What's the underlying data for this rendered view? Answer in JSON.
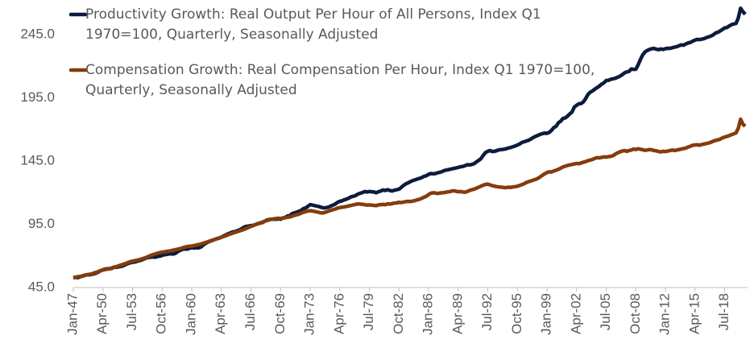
{
  "chart_data": {
    "type": "line",
    "categories": [
      "Jan-47",
      null,
      null,
      null,
      null,
      null,
      null,
      null,
      null,
      null,
      null,
      null,
      null,
      "Apr-50",
      null,
      null,
      null,
      null,
      null,
      null,
      null,
      null,
      null,
      null,
      null,
      null,
      "Jul-53",
      null,
      null,
      null,
      null,
      null,
      null,
      null,
      null,
      null,
      null,
      null,
      null,
      "Oct-56",
      null,
      null,
      null,
      null,
      null,
      null,
      null,
      null,
      null,
      null,
      null,
      null,
      "Jan-60",
      null,
      null,
      null,
      null,
      null,
      null,
      null,
      null,
      null,
      null,
      null,
      null,
      "Apr-63",
      null,
      null,
      null,
      null,
      null,
      null,
      null,
      null,
      null,
      null,
      null,
      null,
      "Jul-66",
      null,
      null,
      null,
      null,
      null,
      null,
      null,
      null,
      null,
      null,
      null,
      null,
      "Oct-69",
      null,
      null,
      null,
      null,
      null,
      null,
      null,
      null,
      null,
      null,
      null,
      null,
      "Jan-73",
      null,
      null,
      null,
      null,
      null,
      null,
      null,
      null,
      null,
      null,
      null,
      null,
      "Apr-76",
      null,
      null,
      null,
      null,
      null,
      null,
      null,
      null,
      null,
      null,
      null,
      null,
      "Jul-79",
      null,
      null,
      null,
      null,
      null,
      null,
      null,
      null,
      null,
      null,
      null,
      null,
      "Oct-82",
      null,
      null,
      null,
      null,
      null,
      null,
      null,
      null,
      null,
      null,
      null,
      null,
      "Jan-86",
      null,
      null,
      null,
      null,
      null,
      null,
      null,
      null,
      null,
      null,
      null,
      null,
      "Apr-89",
      null,
      null,
      null,
      null,
      null,
      null,
      null,
      null,
      null,
      null,
      null,
      null,
      "Jul-92",
      null,
      null,
      null,
      null,
      null,
      null,
      null,
      null,
      null,
      null,
      null,
      null,
      "Oct-95",
      null,
      null,
      null,
      null,
      null,
      null,
      null,
      null,
      null,
      null,
      null,
      null,
      "Jan-99",
      null,
      null,
      null,
      null,
      null,
      null,
      null,
      null,
      null,
      null,
      null,
      null,
      "Apr-02",
      null,
      null,
      null,
      null,
      null,
      null,
      null,
      null,
      null,
      null,
      null,
      null,
      "Jul-05",
      null,
      null,
      null,
      null,
      null,
      null,
      null,
      null,
      null,
      null,
      null,
      null,
      "Oct-08",
      null,
      null,
      null,
      null,
      null,
      null,
      null,
      null,
      null,
      null,
      null,
      null,
      "Jan-12",
      null,
      null,
      null,
      null,
      null,
      null,
      null,
      null,
      null,
      null,
      null,
      null,
      "Apr-15",
      null,
      null,
      null,
      null,
      null,
      null,
      null,
      null,
      null,
      null,
      null,
      null,
      "Jul-18",
      null,
      null,
      null,
      null,
      null,
      null,
      null,
      null,
      null
    ],
    "series": [
      {
        "name": "Productivity Growth: Real Output Per Hour of All Persons, Index Q1 1970=100, Quarterly, Seasonally Adjusted",
        "color": "#0d1b3e",
        "values": [
          52.6,
          53.0,
          52.8,
          53.5,
          54.0,
          54.6,
          55.2,
          55.0,
          55.4,
          55.8,
          56.4,
          57.2,
          58.3,
          59.0,
          59.6,
          59.8,
          60.0,
          60.4,
          61.2,
          61.0,
          61.5,
          61.7,
          62.3,
          63.2,
          64.0,
          64.6,
          65.0,
          65.2,
          65.8,
          66.2,
          66.8,
          67.6,
          68.4,
          68.8,
          69.0,
          69.2,
          69.0,
          69.6,
          69.8,
          70.4,
          71.0,
          71.2,
          71.6,
          71.6,
          71.5,
          72.2,
          73.6,
          74.4,
          75.2,
          75.8,
          75.4,
          76.0,
          76.6,
          76.2,
          76.5,
          76.4,
          77.0,
          78.6,
          79.8,
          80.8,
          81.6,
          82.2,
          83.0,
          83.6,
          84.0,
          84.8,
          85.8,
          86.6,
          87.6,
          88.2,
          89.0,
          89.2,
          90.0,
          90.6,
          91.6,
          92.8,
          93.4,
          93.6,
          94.0,
          94.2,
          94.8,
          95.6,
          96.0,
          96.4,
          97.4,
          98.4,
          98.8,
          99.0,
          99.2,
          99.0,
          99.4,
          99.0,
          100.0,
          100.4,
          101.6,
          101.8,
          103.4,
          104.0,
          104.6,
          105.2,
          106.0,
          107.4,
          108.0,
          109.2,
          110.6,
          110.2,
          109.8,
          109.4,
          109.0,
          108.4,
          108.0,
          108.2,
          108.6,
          109.4,
          110.2,
          111.0,
          112.4,
          113.2,
          113.6,
          114.4,
          115.0,
          115.8,
          116.8,
          117.2,
          117.8,
          119.0,
          119.6,
          120.2,
          121.0,
          120.6,
          121.0,
          120.8,
          120.6,
          120.0,
          120.8,
          121.4,
          122.2,
          121.8,
          122.4,
          121.8,
          121.4,
          122.0,
          122.4,
          122.8,
          124.2,
          125.8,
          127.0,
          127.8,
          128.8,
          129.6,
          130.2,
          130.8,
          131.4,
          132.0,
          133.0,
          133.4,
          134.6,
          135.2,
          135.0,
          135.2,
          135.8,
          136.2,
          136.8,
          137.6,
          138.0,
          138.4,
          138.8,
          139.2,
          139.6,
          140.0,
          140.6,
          140.8,
          141.4,
          142.2,
          142.0,
          142.4,
          143.0,
          144.4,
          145.6,
          147.0,
          149.6,
          151.8,
          152.8,
          153.4,
          152.6,
          152.8,
          153.4,
          154.0,
          154.2,
          154.4,
          154.8,
          155.4,
          155.8,
          156.4,
          157.0,
          157.8,
          158.6,
          159.8,
          160.4,
          161.0,
          161.6,
          162.6,
          163.8,
          164.6,
          165.4,
          166.2,
          166.8,
          167.2,
          167.0,
          167.8,
          169.4,
          171.6,
          172.6,
          175.4,
          176.6,
          178.8,
          179.2,
          180.6,
          182.4,
          184.0,
          187.8,
          189.2,
          190.4,
          190.6,
          192.0,
          194.6,
          197.8,
          199.6,
          200.6,
          202.0,
          203.2,
          204.4,
          206.0,
          207.0,
          208.8,
          209.0,
          209.8,
          210.2,
          210.6,
          211.4,
          212.2,
          213.4,
          214.8,
          215.6,
          216.0,
          218.0,
          217.6,
          217.8,
          221.2,
          225.4,
          229.0,
          231.4,
          232.6,
          233.4,
          234.0,
          234.2,
          233.6,
          233.2,
          233.8,
          233.4,
          234.0,
          234.4,
          234.2,
          234.8,
          235.2,
          235.6,
          236.4,
          237.0,
          236.8,
          237.8,
          238.6,
          239.0,
          240.0,
          240.8,
          241.4,
          241.2,
          241.6,
          242.0,
          242.8,
          243.4,
          244.0,
          245.0,
          246.4,
          247.0,
          248.0,
          249.2,
          250.4,
          250.8,
          252.0,
          253.0,
          253.6,
          254.0,
          258.4,
          266.0,
          263.4,
          261.2
        ]
      },
      {
        "name": "Compensation Growth: Real Compensation Per Hour, Index Q1 1970=100, Quarterly, Seasonally Adjusted",
        "color": "#843c0c",
        "values": [
          52.8,
          53.2,
          53.6,
          53.8,
          54.2,
          54.8,
          55.0,
          55.4,
          55.8,
          56.4,
          57.0,
          57.6,
          58.4,
          58.8,
          59.2,
          59.6,
          59.8,
          60.2,
          61.0,
          61.6,
          62.2,
          62.8,
          63.4,
          64.0,
          64.8,
          65.4,
          65.8,
          66.2,
          66.6,
          67.0,
          67.6,
          68.2,
          68.8,
          69.6,
          70.4,
          71.0,
          71.6,
          72.2,
          72.6,
          73.0,
          73.2,
          73.6,
          73.8,
          74.2,
          74.6,
          75.0,
          75.4,
          75.8,
          76.4,
          77.0,
          77.4,
          77.6,
          77.8,
          78.2,
          78.6,
          79.0,
          79.4,
          80.0,
          80.6,
          81.2,
          81.8,
          82.4,
          83.0,
          83.6,
          84.2,
          84.8,
          85.4,
          86.0,
          86.8,
          87.4,
          88.0,
          88.6,
          89.2,
          89.8,
          90.4,
          91.0,
          91.8,
          92.6,
          93.4,
          94.0,
          94.8,
          95.4,
          96.0,
          96.8,
          97.4,
          98.0,
          98.6,
          99.0,
          99.2,
          99.6,
          99.8,
          99.6,
          100.0,
          100.2,
          100.6,
          100.8,
          101.4,
          102.0,
          102.6,
          103.0,
          103.8,
          104.6,
          105.0,
          105.6,
          105.8,
          105.6,
          105.2,
          104.8,
          104.4,
          104.0,
          104.2,
          104.8,
          105.4,
          106.0,
          106.6,
          107.0,
          107.8,
          108.2,
          108.6,
          108.8,
          109.2,
          109.6,
          110.0,
          110.4,
          110.8,
          111.2,
          111.0,
          110.8,
          110.6,
          110.2,
          110.4,
          110.2,
          110.0,
          109.8,
          110.4,
          110.6,
          110.8,
          110.6,
          111.2,
          111.0,
          111.4,
          111.8,
          112.0,
          112.4,
          112.2,
          112.6,
          113.0,
          113.2,
          113.0,
          113.4,
          113.8,
          114.4,
          114.8,
          115.6,
          116.4,
          117.2,
          118.6,
          119.6,
          120.0,
          119.8,
          119.4,
          119.8,
          120.0,
          120.2,
          120.6,
          120.8,
          121.2,
          121.6,
          121.2,
          120.8,
          121.0,
          120.6,
          120.4,
          121.0,
          121.8,
          122.4,
          122.8,
          123.6,
          124.4,
          125.2,
          126.0,
          126.6,
          126.8,
          126.2,
          125.6,
          125.2,
          124.8,
          124.6,
          124.4,
          124.2,
          124.0,
          124.4,
          124.2,
          124.6,
          124.8,
          125.2,
          125.8,
          126.4,
          127.2,
          128.2,
          128.8,
          129.4,
          130.0,
          130.6,
          131.4,
          132.6,
          133.8,
          135.0,
          136.0,
          136.6,
          136.4,
          137.2,
          137.8,
          138.6,
          139.4,
          140.4,
          141.0,
          141.6,
          142.0,
          142.4,
          142.8,
          143.2,
          143.0,
          143.6,
          144.2,
          144.6,
          145.4,
          145.8,
          146.4,
          147.2,
          147.8,
          147.6,
          148.0,
          148.4,
          148.2,
          148.6,
          148.8,
          149.4,
          150.6,
          151.6,
          152.4,
          153.0,
          153.4,
          152.8,
          153.4,
          153.8,
          154.6,
          154.2,
          154.8,
          154.4,
          154.0,
          153.6,
          153.8,
          154.2,
          154.0,
          153.4,
          153.2,
          152.6,
          152.4,
          152.8,
          152.6,
          153.0,
          153.4,
          153.8,
          153.4,
          153.8,
          154.2,
          154.6,
          155.0,
          155.4,
          156.2,
          156.8,
          157.6,
          157.8,
          158.0,
          157.6,
          158.2,
          158.6,
          159.0,
          159.4,
          160.0,
          160.8,
          161.4,
          161.8,
          162.4,
          163.4,
          164.0,
          164.6,
          165.2,
          166.0,
          166.6,
          167.4,
          171.0,
          178.2,
          174.4,
          172.6
        ]
      }
    ],
    "ylim": [
      45,
      270
    ],
    "yticks": [
      {
        "value": 45,
        "label": "45.0"
      },
      {
        "value": 95,
        "label": "95.0"
      },
      {
        "value": 145,
        "label": "145.0"
      },
      {
        "value": 195,
        "label": "195.0"
      },
      {
        "value": 245,
        "label": "245.0"
      }
    ],
    "grid": false,
    "legend": "upper left"
  }
}
